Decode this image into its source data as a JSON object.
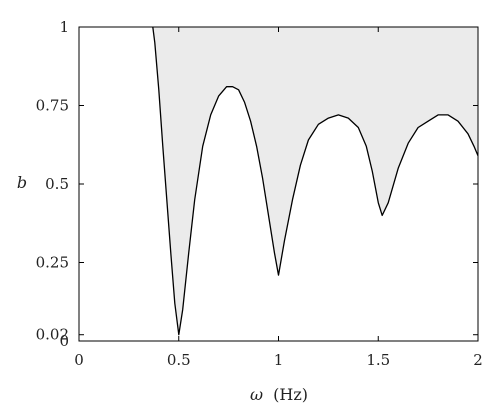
{
  "chart_data": {
    "type": "area",
    "title": "",
    "xlabel_symbol": "ω",
    "xlabel_unit": "(Hz)",
    "ylabel": "b",
    "xlim": [
      0,
      2
    ],
    "ylim": [
      0,
      1
    ],
    "x_ticks": [
      {
        "value": 0,
        "label": "0"
      },
      {
        "value": 0.5,
        "label": "0.5"
      },
      {
        "value": 1,
        "label": "1"
      },
      {
        "value": 1.5,
        "label": "1.5"
      },
      {
        "value": 2,
        "label": "2"
      }
    ],
    "y_ticks": [
      {
        "value": 0,
        "label": "0"
      },
      {
        "value": 0.02,
        "label": "0.02"
      },
      {
        "value": 0.25,
        "label": "0.25"
      },
      {
        "value": 0.5,
        "label": "0.5"
      },
      {
        "value": 0.75,
        "label": "0.75"
      },
      {
        "value": 1,
        "label": "1"
      }
    ],
    "grid": false,
    "fill_color": "#ebebeb",
    "line_color": "#000000",
    "series": [
      {
        "x": [
          0.37,
          0.38,
          0.4,
          0.42,
          0.44,
          0.46,
          0.48,
          0.5,
          0.52,
          0.55,
          0.58,
          0.62,
          0.66,
          0.7,
          0.74,
          0.77,
          0.8,
          0.83,
          0.86,
          0.89,
          0.92,
          0.95,
          0.98,
          1.0,
          1.03,
          1.07,
          1.11,
          1.15,
          1.2,
          1.25,
          1.3,
          1.35,
          1.4,
          1.44,
          1.47,
          1.5,
          1.52,
          1.55,
          1.6,
          1.65,
          1.7,
          1.75,
          1.8,
          1.85,
          1.9,
          1.95,
          1.98,
          2.0
        ],
        "y": [
          1.0,
          0.95,
          0.8,
          0.62,
          0.45,
          0.28,
          0.12,
          0.02,
          0.1,
          0.28,
          0.45,
          0.62,
          0.72,
          0.78,
          0.81,
          0.81,
          0.8,
          0.76,
          0.7,
          0.62,
          0.52,
          0.4,
          0.28,
          0.21,
          0.32,
          0.45,
          0.56,
          0.64,
          0.69,
          0.71,
          0.72,
          0.71,
          0.68,
          0.62,
          0.54,
          0.44,
          0.4,
          0.44,
          0.55,
          0.63,
          0.68,
          0.7,
          0.72,
          0.72,
          0.7,
          0.66,
          0.62,
          0.59
        ]
      }
    ]
  }
}
